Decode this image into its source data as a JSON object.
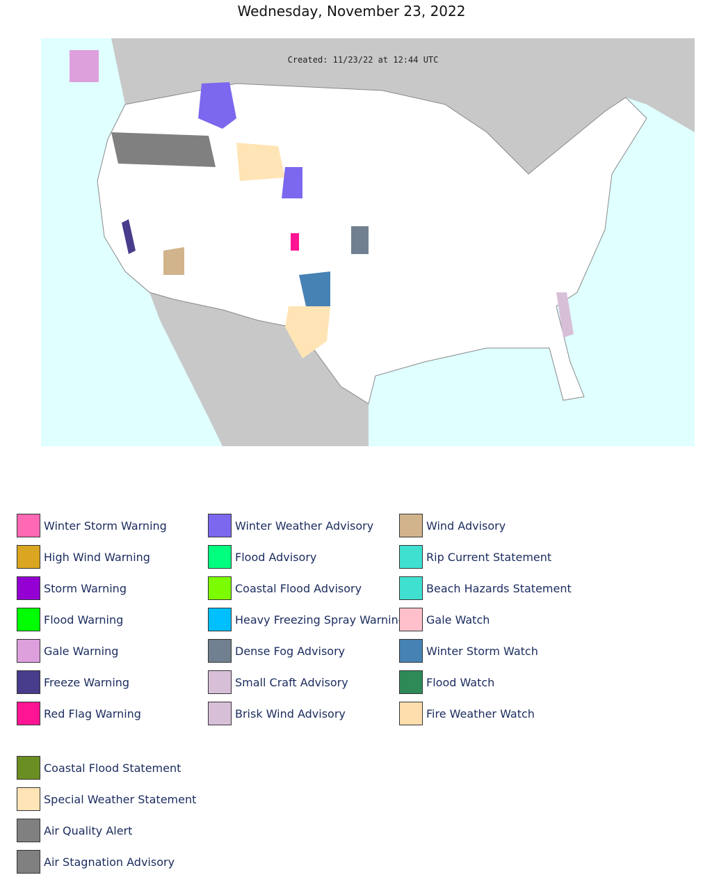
{
  "title": "Wednesday, November 23, 2022",
  "map": {
    "created": "Created: 11/23/22 at 12:44 UTC"
  },
  "legend": {
    "columns": [
      [
        {
          "label": "Winter Storm Warning",
          "color": "#ff69b4"
        },
        {
          "label": "High Wind Warning",
          "color": "#daa520"
        },
        {
          "label": "Storm Warning",
          "color": "#9400d3"
        },
        {
          "label": "Flood Warning",
          "color": "#00ff00"
        },
        {
          "label": "Gale Warning",
          "color": "#dda0dd"
        },
        {
          "label": "Freeze Warning",
          "color": "#483d8b"
        },
        {
          "label": "Red Flag Warning",
          "color": "#ff1493"
        }
      ],
      [
        {
          "label": "Winter Weather Advisory",
          "color": "#7b68ee"
        },
        {
          "label": "Flood Advisory",
          "color": "#00ff7f"
        },
        {
          "label": "Coastal Flood Advisory",
          "color": "#7cfc00"
        },
        {
          "label": "Heavy Freezing Spray Warning",
          "color": "#00bfff"
        },
        {
          "label": "Dense Fog Advisory",
          "color": "#708090"
        },
        {
          "label": "Small Craft Advisory",
          "color": "#d8bfd8"
        },
        {
          "label": "Brisk Wind Advisory",
          "color": "#d8bfd8"
        }
      ],
      [
        {
          "label": "Wind Advisory",
          "color": "#d2b48c"
        },
        {
          "label": "Rip Current Statement",
          "color": "#40e0d0"
        },
        {
          "label": "Beach Hazards Statement",
          "color": "#40e0d0"
        },
        {
          "label": "Gale Watch",
          "color": "#ffc0cb"
        },
        {
          "label": "Winter Storm Watch",
          "color": "#4682b4"
        },
        {
          "label": "Flood Watch",
          "color": "#2e8b57"
        },
        {
          "label": "Fire Weather Watch",
          "color": "#ffdead"
        }
      ]
    ],
    "extra": [
      {
        "label": "Coastal Flood Statement",
        "color": "#6b8e23"
      },
      {
        "label": "Special Weather Statement",
        "color": "#ffe4b5"
      },
      {
        "label": "Air Quality Alert",
        "color": "#808080"
      },
      {
        "label": "Air Stagnation Advisory",
        "color": "#808080"
      }
    ]
  }
}
